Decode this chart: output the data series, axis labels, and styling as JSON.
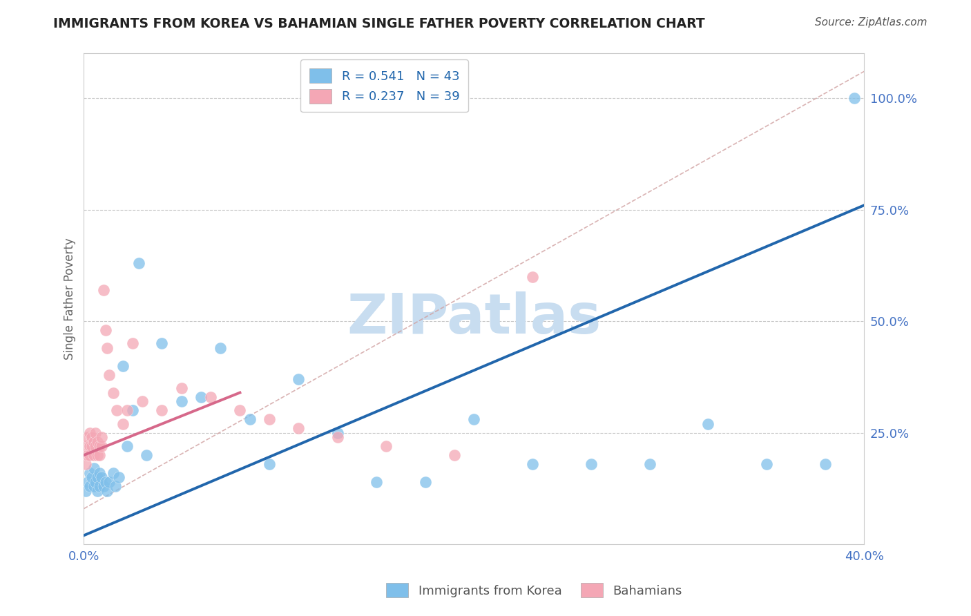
{
  "title": "IMMIGRANTS FROM KOREA VS BAHAMIAN SINGLE FATHER POVERTY CORRELATION CHART",
  "source": "Source: ZipAtlas.com",
  "ylabel_label": "Single Father Poverty",
  "xlim": [
    0.0,
    0.4
  ],
  "ylim": [
    0.0,
    1.1
  ],
  "xticks": [
    0.0,
    0.1,
    0.2,
    0.3,
    0.4
  ],
  "xtick_labels": [
    "0.0%",
    "",
    "",
    "",
    "40.0%"
  ],
  "ytick_positions": [
    0.25,
    0.5,
    0.75,
    1.0
  ],
  "ytick_labels_right": [
    "25.0%",
    "50.0%",
    "75.0%",
    "100.0%"
  ],
  "legend_color1": "#7fbfea",
  "legend_color2": "#f4a7b5",
  "watermark_color": "#c8ddf0",
  "korea_scatter_x": [
    0.001,
    0.002,
    0.003,
    0.003,
    0.004,
    0.005,
    0.005,
    0.006,
    0.007,
    0.007,
    0.008,
    0.008,
    0.009,
    0.01,
    0.011,
    0.012,
    0.013,
    0.015,
    0.016,
    0.018,
    0.02,
    0.022,
    0.025,
    0.028,
    0.032,
    0.04,
    0.05,
    0.06,
    0.07,
    0.085,
    0.095,
    0.11,
    0.13,
    0.15,
    0.175,
    0.2,
    0.23,
    0.26,
    0.29,
    0.32,
    0.35,
    0.38,
    0.395
  ],
  "korea_scatter_y": [
    0.12,
    0.14,
    0.13,
    0.16,
    0.15,
    0.13,
    0.17,
    0.14,
    0.15,
    0.12,
    0.16,
    0.13,
    0.15,
    0.13,
    0.14,
    0.12,
    0.14,
    0.16,
    0.13,
    0.15,
    0.4,
    0.22,
    0.3,
    0.63,
    0.2,
    0.45,
    0.32,
    0.33,
    0.44,
    0.28,
    0.18,
    0.37,
    0.25,
    0.14,
    0.14,
    0.28,
    0.18,
    0.18,
    0.18,
    0.27,
    0.18,
    0.18,
    1.0
  ],
  "bahamas_scatter_x": [
    0.001,
    0.001,
    0.002,
    0.002,
    0.003,
    0.003,
    0.003,
    0.004,
    0.004,
    0.005,
    0.005,
    0.006,
    0.006,
    0.007,
    0.007,
    0.008,
    0.008,
    0.009,
    0.009,
    0.01,
    0.011,
    0.012,
    0.013,
    0.015,
    0.017,
    0.02,
    0.022,
    0.025,
    0.03,
    0.04,
    0.05,
    0.065,
    0.08,
    0.095,
    0.11,
    0.13,
    0.155,
    0.19,
    0.23
  ],
  "bahamas_scatter_y": [
    0.18,
    0.22,
    0.2,
    0.24,
    0.22,
    0.2,
    0.25,
    0.22,
    0.24,
    0.23,
    0.2,
    0.22,
    0.25,
    0.2,
    0.23,
    0.22,
    0.2,
    0.22,
    0.24,
    0.57,
    0.48,
    0.44,
    0.38,
    0.34,
    0.3,
    0.27,
    0.3,
    0.45,
    0.32,
    0.3,
    0.35,
    0.33,
    0.3,
    0.28,
    0.26,
    0.24,
    0.22,
    0.2,
    0.6
  ],
  "korea_line_x": [
    0.0,
    0.4
  ],
  "korea_line_y": [
    0.02,
    0.76
  ],
  "bahamas_line_x": [
    0.0,
    0.08
  ],
  "bahamas_line_y": [
    0.2,
    0.34
  ],
  "dashed_line_x": [
    0.0,
    0.4
  ],
  "dashed_line_y": [
    0.08,
    1.06
  ],
  "scatter_color_korea": "#7fbfea",
  "scatter_color_bahamas": "#f4a7b5",
  "line_color_korea": "#2166ac",
  "line_color_bahamas": "#d6688a",
  "dashed_line_color": "#d0a0a0",
  "grid_color": "#c8c8c8",
  "title_color": "#222222",
  "axis_label_color": "#666666",
  "tick_label_color": "#4472c4",
  "source_color": "#555555"
}
